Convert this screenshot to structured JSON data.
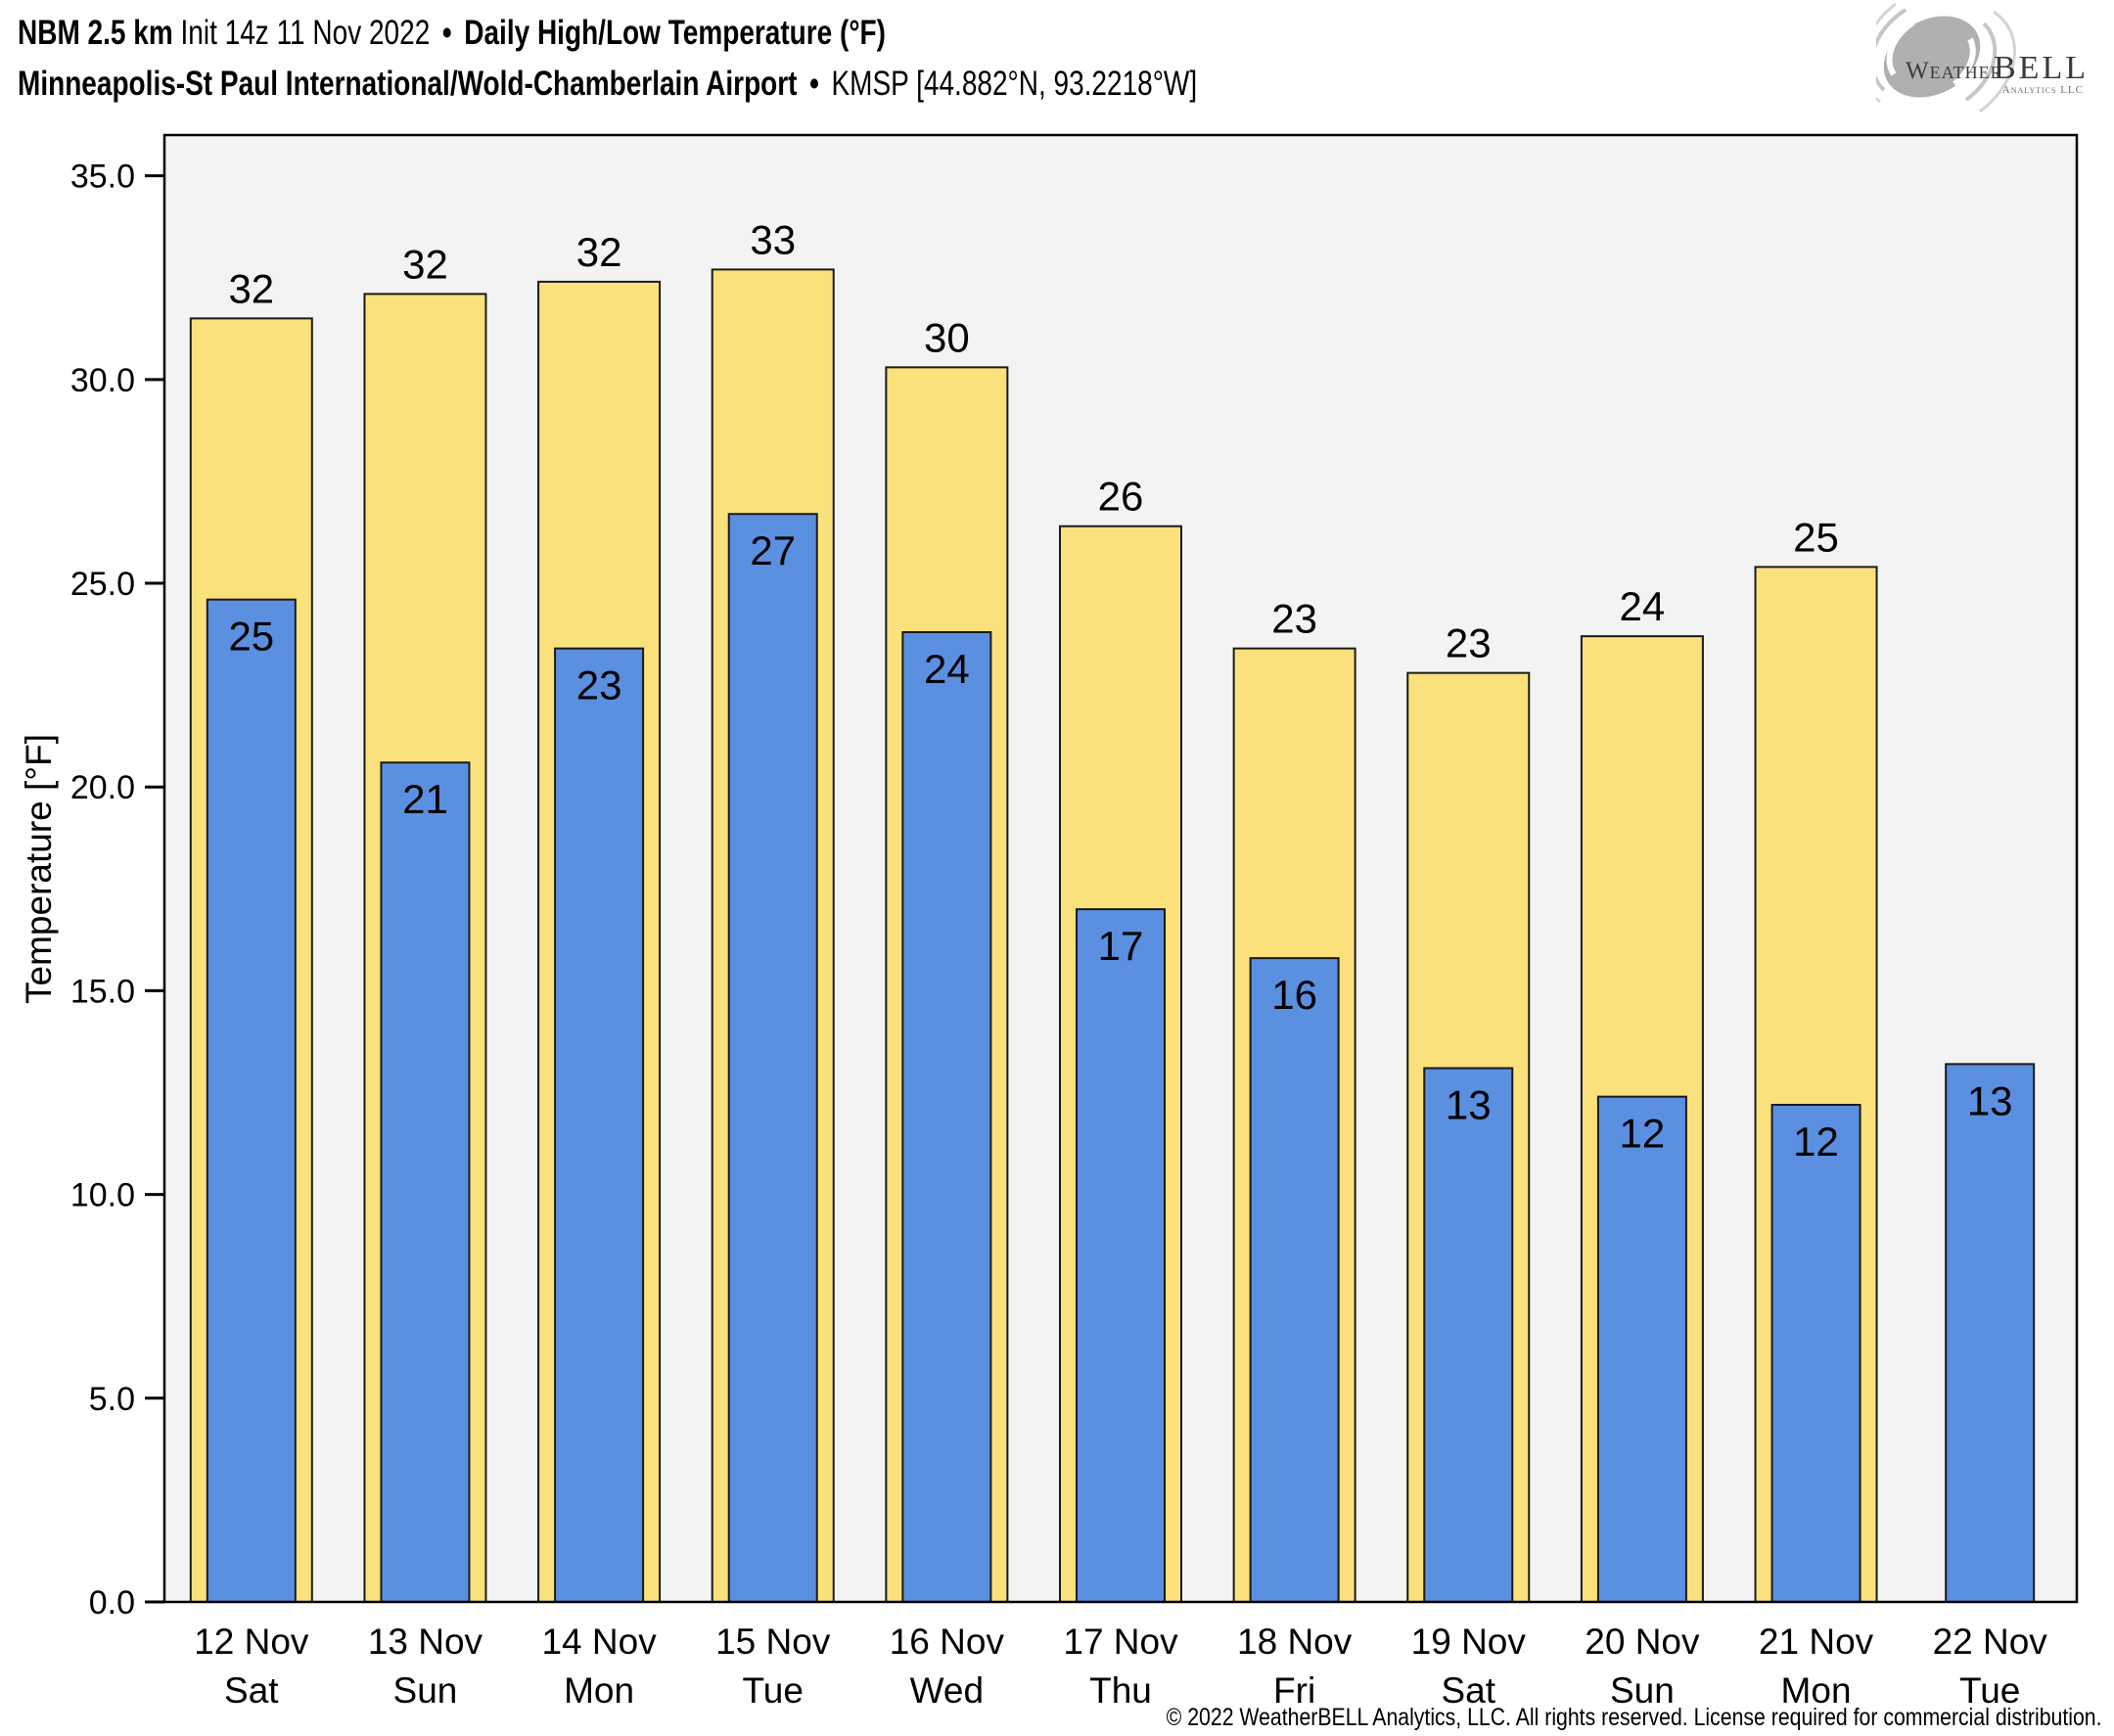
{
  "header": {
    "model": "NBM 2.5 km",
    "init": "Init 14z 11 Nov 2022",
    "separator": "•",
    "product": "Daily High/Low Temperature (°F)",
    "station": "Minneapolis-St Paul International/Wold-Chamberlain Airport",
    "station_id": "KMSP [44.882°N, 93.2218°W]"
  },
  "logo": {
    "weather": "Weather",
    "bell": "BELL",
    "subtext": "Analytics LLC"
  },
  "footer": {
    "copyright": "© 2022 WeatherBELL Analytics, LLC. All rights reserved. License required for commercial distribution."
  },
  "chart_data": {
    "type": "bar",
    "title": "Daily High/Low Temperature (°F)",
    "ylabel": "Temperature [°F]",
    "ylim": [
      0,
      36
    ],
    "grid": false,
    "legend_position": null,
    "plot_background": "#f3f3f3",
    "bar_edge_color": "#1a1a1a",
    "y_ticks": [
      {
        "value": 35,
        "label": "35.0"
      },
      {
        "value": 30,
        "label": "30.0"
      },
      {
        "value": 25,
        "label": "25.0"
      },
      {
        "value": 20,
        "label": "20.0"
      },
      {
        "value": 15,
        "label": "15.0"
      },
      {
        "value": 10,
        "label": "10.0"
      },
      {
        "value": 5,
        "label": "5.0"
      },
      {
        "value": 0,
        "label": "0.0"
      }
    ],
    "categories": [
      {
        "date": "12 Nov",
        "day": "Sat"
      },
      {
        "date": "13 Nov",
        "day": "Sun"
      },
      {
        "date": "14 Nov",
        "day": "Mon"
      },
      {
        "date": "15 Nov",
        "day": "Tue"
      },
      {
        "date": "16 Nov",
        "day": "Wed"
      },
      {
        "date": "17 Nov",
        "day": "Thu"
      },
      {
        "date": "18 Nov",
        "day": "Fri"
      },
      {
        "date": "19 Nov",
        "day": "Sat"
      },
      {
        "date": "20 Nov",
        "day": "Sun"
      },
      {
        "date": "21 Nov",
        "day": "Mon"
      },
      {
        "date": "22 Nov",
        "day": "Tue"
      }
    ],
    "series": [
      {
        "name": "Daily High",
        "color": "#fbe17b",
        "values": [
          31.5,
          32.1,
          32.4,
          32.7,
          30.3,
          26.4,
          23.4,
          22.8,
          23.7,
          25.4,
          null
        ],
        "labels": [
          "32",
          "32",
          "32",
          "33",
          "30",
          "26",
          "23",
          "23",
          "24",
          "25",
          ""
        ]
      },
      {
        "name": "Daily Low",
        "color": "#5b8fe0",
        "values": [
          24.6,
          20.6,
          23.4,
          26.7,
          23.8,
          17.0,
          15.8,
          13.1,
          12.4,
          12.2,
          13.2
        ],
        "labels": [
          "25",
          "21",
          "23",
          "27",
          "24",
          "17",
          "16",
          "13",
          "12",
          "12",
          "13"
        ]
      }
    ]
  }
}
